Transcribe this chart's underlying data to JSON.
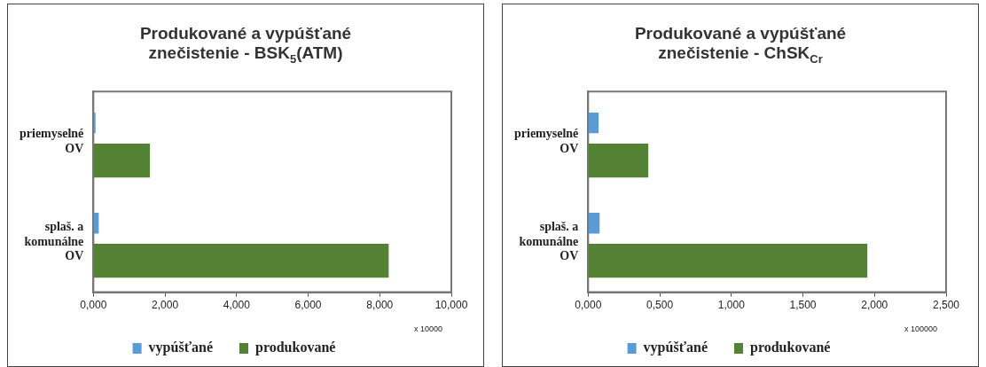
{
  "chart_data": [
    {
      "type": "bar",
      "orientation": "horizontal",
      "title": "Produkované  a vypúšťané\nznečistenie - BSK$_{5}$(ATM)",
      "categories": [
        "priemyselné OV",
        "splaš. a komunálne OV"
      ],
      "series": [
        {
          "name": "vypúšťané",
          "color": "#5b9bd5",
          "values": [
            0.06,
            0.15
          ]
        },
        {
          "name": "produkované",
          "color": "#548235",
          "values": [
            1.58,
            8.25
          ]
        }
      ],
      "xlim": [
        0,
        10
      ],
      "xticks": [
        {
          "value": 0,
          "label": "0,000"
        },
        {
          "value": 2,
          "label": "2,000"
        },
        {
          "value": 4,
          "label": "4,000"
        },
        {
          "value": 6,
          "label": "6,000"
        },
        {
          "value": 8,
          "label": "8,000"
        },
        {
          "value": 10,
          "label": "10,000"
        }
      ],
      "annotations": [
        "x 10000"
      ],
      "legend": "bottom"
    },
    {
      "type": "bar",
      "orientation": "horizontal",
      "title": "Produkované  a vypúšťané\nznečistenie - ChSK$_{Cr}$",
      "categories": [
        "priemyselné OV",
        "splaš. a komunálne OV"
      ],
      "series": [
        {
          "name": "vypúšťané",
          "color": "#5b9bd5",
          "values": [
            0.073,
            0.08
          ]
        },
        {
          "name": "produkované",
          "color": "#548235",
          "values": [
            0.42,
            1.95
          ]
        }
      ],
      "xlim": [
        0,
        2.5
      ],
      "xticks": [
        {
          "value": 0,
          "label": "0,000"
        },
        {
          "value": 0.5,
          "label": "0,500"
        },
        {
          "value": 1,
          "label": "1,000"
        },
        {
          "value": 1.5,
          "label": "1,500"
        },
        {
          "value": 2,
          "label": "2,000"
        },
        {
          "value": 2.5,
          "label": "2,500"
        }
      ],
      "annotations": [
        "x 100000"
      ],
      "legend": "bottom"
    }
  ]
}
